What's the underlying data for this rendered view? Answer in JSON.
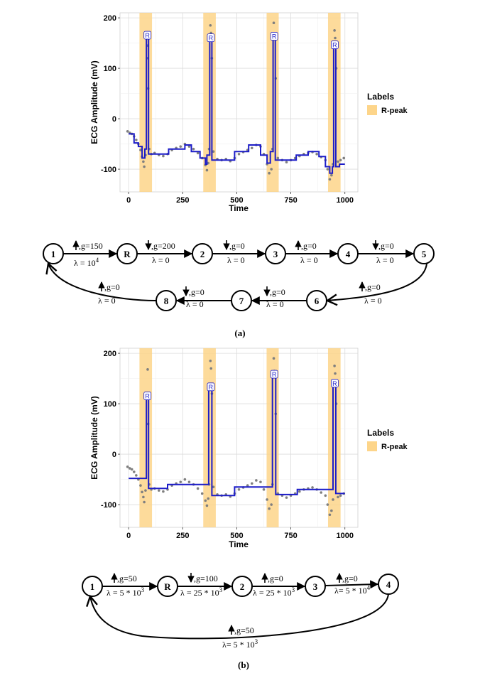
{
  "chart_data": [
    {
      "type": "line",
      "xlabel": "Time",
      "ylabel": "ECG Amplitude (mV)",
      "xlim": [
        -40,
        1060
      ],
      "ylim": [
        -145,
        210
      ],
      "xticks": [
        0,
        250,
        500,
        750,
        1000
      ],
      "yticks": [
        -100,
        0,
        100,
        200
      ],
      "grid": true,
      "legend": {
        "title": "Labels",
        "entries": [
          "R-peak"
        ],
        "placement": "right"
      },
      "colors": {
        "highlight": "#fdd58a",
        "segment": "#1c1cc8",
        "points": "#7f7f7f"
      },
      "highlight_regions": [
        [
          50,
          108
        ],
        [
          345,
          403
        ],
        [
          638,
          694
        ],
        [
          922,
          980
        ]
      ],
      "peak_label": "R",
      "peaks": [
        {
          "x": 87,
          "y": 162
        },
        {
          "x": 380,
          "y": 157
        },
        {
          "x": 673,
          "y": 160
        },
        {
          "x": 953,
          "y": 143
        }
      ],
      "segments": [
        [
          [
            0,
            -30
          ],
          [
            25,
            -30
          ],
          [
            25,
            -48
          ],
          [
            45,
            -48
          ],
          [
            45,
            -55
          ],
          [
            62,
            -55
          ],
          [
            62,
            -78
          ],
          [
            75,
            -78
          ],
          [
            75,
            -60
          ],
          [
            82,
            -60
          ],
          [
            82,
            162
          ],
          [
            92,
            162
          ],
          [
            92,
            -70
          ],
          [
            185,
            -70
          ],
          [
            185,
            -60
          ],
          [
            260,
            -60
          ],
          [
            260,
            -52
          ],
          [
            290,
            -52
          ],
          [
            290,
            -65
          ],
          [
            330,
            -65
          ],
          [
            330,
            -78
          ],
          [
            355,
            -78
          ],
          [
            355,
            -90
          ],
          [
            362,
            -90
          ],
          [
            362,
            -72
          ],
          [
            375,
            -72
          ],
          [
            375,
            157
          ],
          [
            385,
            157
          ],
          [
            385,
            -82
          ],
          [
            490,
            -82
          ],
          [
            490,
            -65
          ],
          [
            555,
            -65
          ],
          [
            555,
            -52
          ],
          [
            610,
            -52
          ],
          [
            610,
            -72
          ],
          [
            640,
            -72
          ],
          [
            640,
            -88
          ],
          [
            655,
            -88
          ],
          [
            655,
            -65
          ],
          [
            668,
            -65
          ],
          [
            668,
            160
          ],
          [
            678,
            160
          ],
          [
            678,
            -82
          ],
          [
            775,
            -82
          ],
          [
            775,
            -72
          ],
          [
            830,
            -72
          ],
          [
            830,
            -65
          ],
          [
            880,
            -65
          ],
          [
            880,
            -75
          ],
          [
            910,
            -75
          ],
          [
            910,
            -95
          ],
          [
            930,
            -95
          ],
          [
            930,
            -108
          ],
          [
            942,
            -108
          ],
          [
            942,
            -95
          ],
          [
            948,
            -95
          ],
          [
            948,
            143
          ],
          [
            958,
            143
          ],
          [
            958,
            -95
          ],
          [
            975,
            -95
          ],
          [
            975,
            -90
          ],
          [
            1000,
            -90
          ]
        ]
      ],
      "points": [
        [
          -5,
          -25
        ],
        [
          5,
          -28
        ],
        [
          15,
          -30
        ],
        [
          25,
          -35
        ],
        [
          35,
          -42
        ],
        [
          45,
          -50
        ],
        [
          55,
          -62
        ],
        [
          62,
          -75
        ],
        [
          68,
          -85
        ],
        [
          72,
          -95
        ],
        [
          78,
          -72
        ],
        [
          85,
          120
        ],
        [
          88,
          145
        ],
        [
          90,
          60
        ],
        [
          95,
          -60
        ],
        [
          105,
          -70
        ],
        [
          120,
          -68
        ],
        [
          140,
          -72
        ],
        [
          160,
          -74
        ],
        [
          180,
          -70
        ],
        [
          200,
          -62
        ],
        [
          220,
          -58
        ],
        [
          240,
          -55
        ],
        [
          260,
          -50
        ],
        [
          280,
          -55
        ],
        [
          300,
          -60
        ],
        [
          320,
          -68
        ],
        [
          340,
          -78
        ],
        [
          355,
          -92
        ],
        [
          362,
          -102
        ],
        [
          368,
          -88
        ],
        [
          372,
          -60
        ],
        [
          378,
          185
        ],
        [
          381,
          170
        ],
        [
          385,
          120
        ],
        [
          392,
          -65
        ],
        [
          410,
          -80
        ],
        [
          430,
          -82
        ],
        [
          450,
          -80
        ],
        [
          470,
          -84
        ],
        [
          490,
          -78
        ],
        [
          510,
          -70
        ],
        [
          530,
          -66
        ],
        [
          550,
          -62
        ],
        [
          570,
          -58
        ],
        [
          590,
          -52
        ],
        [
          610,
          -55
        ],
        [
          625,
          -70
        ],
        [
          640,
          -90
        ],
        [
          650,
          -108
        ],
        [
          660,
          -100
        ],
        [
          665,
          -60
        ],
        [
          671,
          190
        ],
        [
          674,
          165
        ],
        [
          680,
          80
        ],
        [
          690,
          -78
        ],
        [
          710,
          -82
        ],
        [
          730,
          -86
        ],
        [
          750,
          -82
        ],
        [
          770,
          -78
        ],
        [
          790,
          -74
        ],
        [
          810,
          -70
        ],
        [
          830,
          -68
        ],
        [
          850,
          -66
        ],
        [
          870,
          -70
        ],
        [
          890,
          -76
        ],
        [
          910,
          -82
        ],
        [
          920,
          -100
        ],
        [
          930,
          -120
        ],
        [
          938,
          -112
        ],
        [
          945,
          -90
        ],
        [
          952,
          175
        ],
        [
          955,
          160
        ],
        [
          960,
          100
        ],
        [
          968,
          -85
        ],
        [
          980,
          -82
        ],
        [
          995,
          -78
        ]
      ]
    },
    {
      "type": "line",
      "xlabel": "Time",
      "ylabel": "ECG Amplitude (mV)",
      "xlim": [
        -40,
        1060
      ],
      "ylim": [
        -145,
        210
      ],
      "xticks": [
        0,
        250,
        500,
        750,
        1000
      ],
      "yticks": [
        -100,
        0,
        100,
        200
      ],
      "grid": true,
      "legend": {
        "title": "Labels",
        "entries": [
          "R-peak"
        ],
        "placement": "right"
      },
      "colors": {
        "highlight": "#fdd58a",
        "segment": "#1c1cc8",
        "points": "#7f7f7f"
      },
      "highlight_regions": [
        [
          50,
          108
        ],
        [
          345,
          403
        ],
        [
          638,
          694
        ],
        [
          922,
          980
        ]
      ],
      "peak_label": "R",
      "peaks": [
        {
          "x": 87,
          "y": 112
        },
        {
          "x": 380,
          "y": 130
        },
        {
          "x": 673,
          "y": 155
        },
        {
          "x": 953,
          "y": 137
        }
      ],
      "segments": [
        [
          [
            0,
            -48
          ],
          [
            82,
            -48
          ],
          [
            82,
            112
          ],
          [
            92,
            112
          ],
          [
            92,
            -68
          ],
          [
            180,
            -68
          ],
          [
            180,
            -60
          ],
          [
            370,
            -60
          ],
          [
            370,
            130
          ],
          [
            385,
            130
          ],
          [
            385,
            -82
          ],
          [
            490,
            -82
          ],
          [
            490,
            -65
          ],
          [
            665,
            -65
          ],
          [
            665,
            155
          ],
          [
            680,
            155
          ],
          [
            680,
            -80
          ],
          [
            780,
            -80
          ],
          [
            780,
            -70
          ],
          [
            945,
            -70
          ],
          [
            945,
            137
          ],
          [
            958,
            137
          ],
          [
            958,
            -78
          ],
          [
            1000,
            -78
          ]
        ]
      ],
      "points": [
        [
          -5,
          -25
        ],
        [
          5,
          -28
        ],
        [
          15,
          -30
        ],
        [
          25,
          -35
        ],
        [
          35,
          -42
        ],
        [
          45,
          -50
        ],
        [
          55,
          -62
        ],
        [
          62,
          -75
        ],
        [
          68,
          -85
        ],
        [
          72,
          -95
        ],
        [
          78,
          -72
        ],
        [
          85,
          110
        ],
        [
          88,
          168
        ],
        [
          90,
          60
        ],
        [
          95,
          -60
        ],
        [
          105,
          -70
        ],
        [
          120,
          -68
        ],
        [
          140,
          -72
        ],
        [
          160,
          -74
        ],
        [
          180,
          -70
        ],
        [
          200,
          -62
        ],
        [
          220,
          -58
        ],
        [
          240,
          -55
        ],
        [
          260,
          -50
        ],
        [
          280,
          -55
        ],
        [
          300,
          -60
        ],
        [
          320,
          -68
        ],
        [
          340,
          -78
        ],
        [
          355,
          -92
        ],
        [
          362,
          -102
        ],
        [
          368,
          -88
        ],
        [
          372,
          -60
        ],
        [
          378,
          185
        ],
        [
          381,
          170
        ],
        [
          385,
          120
        ],
        [
          392,
          -65
        ],
        [
          410,
          -80
        ],
        [
          430,
          -82
        ],
        [
          450,
          -80
        ],
        [
          470,
          -84
        ],
        [
          490,
          -78
        ],
        [
          510,
          -70
        ],
        [
          530,
          -66
        ],
        [
          550,
          -62
        ],
        [
          570,
          -58
        ],
        [
          590,
          -52
        ],
        [
          610,
          -55
        ],
        [
          625,
          -70
        ],
        [
          640,
          -90
        ],
        [
          650,
          -108
        ],
        [
          660,
          -100
        ],
        [
          665,
          -60
        ],
        [
          671,
          190
        ],
        [
          674,
          165
        ],
        [
          680,
          80
        ],
        [
          690,
          -78
        ],
        [
          710,
          -82
        ],
        [
          730,
          -86
        ],
        [
          750,
          -82
        ],
        [
          770,
          -78
        ],
        [
          790,
          -74
        ],
        [
          810,
          -70
        ],
        [
          830,
          -68
        ],
        [
          850,
          -66
        ],
        [
          870,
          -70
        ],
        [
          890,
          -76
        ],
        [
          910,
          -82
        ],
        [
          920,
          -100
        ],
        [
          930,
          -120
        ],
        [
          938,
          -112
        ],
        [
          945,
          -90
        ],
        [
          952,
          175
        ],
        [
          955,
          160
        ],
        [
          960,
          100
        ],
        [
          968,
          -85
        ],
        [
          980,
          -82
        ],
        [
          995,
          -78
        ]
      ]
    }
  ],
  "diagram_a": {
    "caption": "(a)",
    "nodes": [
      "1",
      "R",
      "2",
      "3",
      "4",
      "5",
      "6",
      "7",
      "8"
    ],
    "edges": [
      {
        "g": ",g=150",
        "lambda": "λ = 10",
        "exp": "4",
        "dir": "up"
      },
      {
        "g": ",g=200",
        "lambda": "λ = 0",
        "exp": "",
        "dir": "down"
      },
      {
        "g": ",g=0",
        "lambda": "λ = 0",
        "exp": "",
        "dir": "down"
      },
      {
        "g": ",g=0",
        "lambda": "λ = 0",
        "exp": "",
        "dir": "up"
      },
      {
        "g": ",g=0",
        "lambda": "λ = 0",
        "exp": "",
        "dir": "down"
      },
      {
        "g": ",g=0",
        "lambda": "λ = 0",
        "exp": "",
        "dir": "up"
      },
      {
        "g": ",g=0",
        "lambda": "λ = 0",
        "exp": "",
        "dir": "down"
      },
      {
        "g": ",g=0",
        "lambda": "λ = 0",
        "exp": "",
        "dir": "down"
      },
      {
        "g": ",g=0",
        "lambda": "λ = 0",
        "exp": "",
        "dir": "up"
      }
    ]
  },
  "diagram_b": {
    "caption": "(b)",
    "nodes": [
      "1",
      "R",
      "2",
      "3",
      "4"
    ],
    "edges": [
      {
        "g": ",g=50",
        "lambda": "λ = 5 * 10",
        "exp": "3",
        "dir": "up"
      },
      {
        "g": ",g=100",
        "lambda": "λ = 25 * 10",
        "exp": "3",
        "dir": "down"
      },
      {
        "g": ",g=0",
        "lambda": "λ = 25 * 10",
        "exp": "3",
        "dir": "up"
      },
      {
        "g": ",g=0",
        "lambda": "λ= 5 * 10",
        "exp": "4",
        "dir": "up"
      },
      {
        "g": ",g=50",
        "lambda": "λ= 5 * 10",
        "exp": "3",
        "dir": "up"
      }
    ]
  }
}
